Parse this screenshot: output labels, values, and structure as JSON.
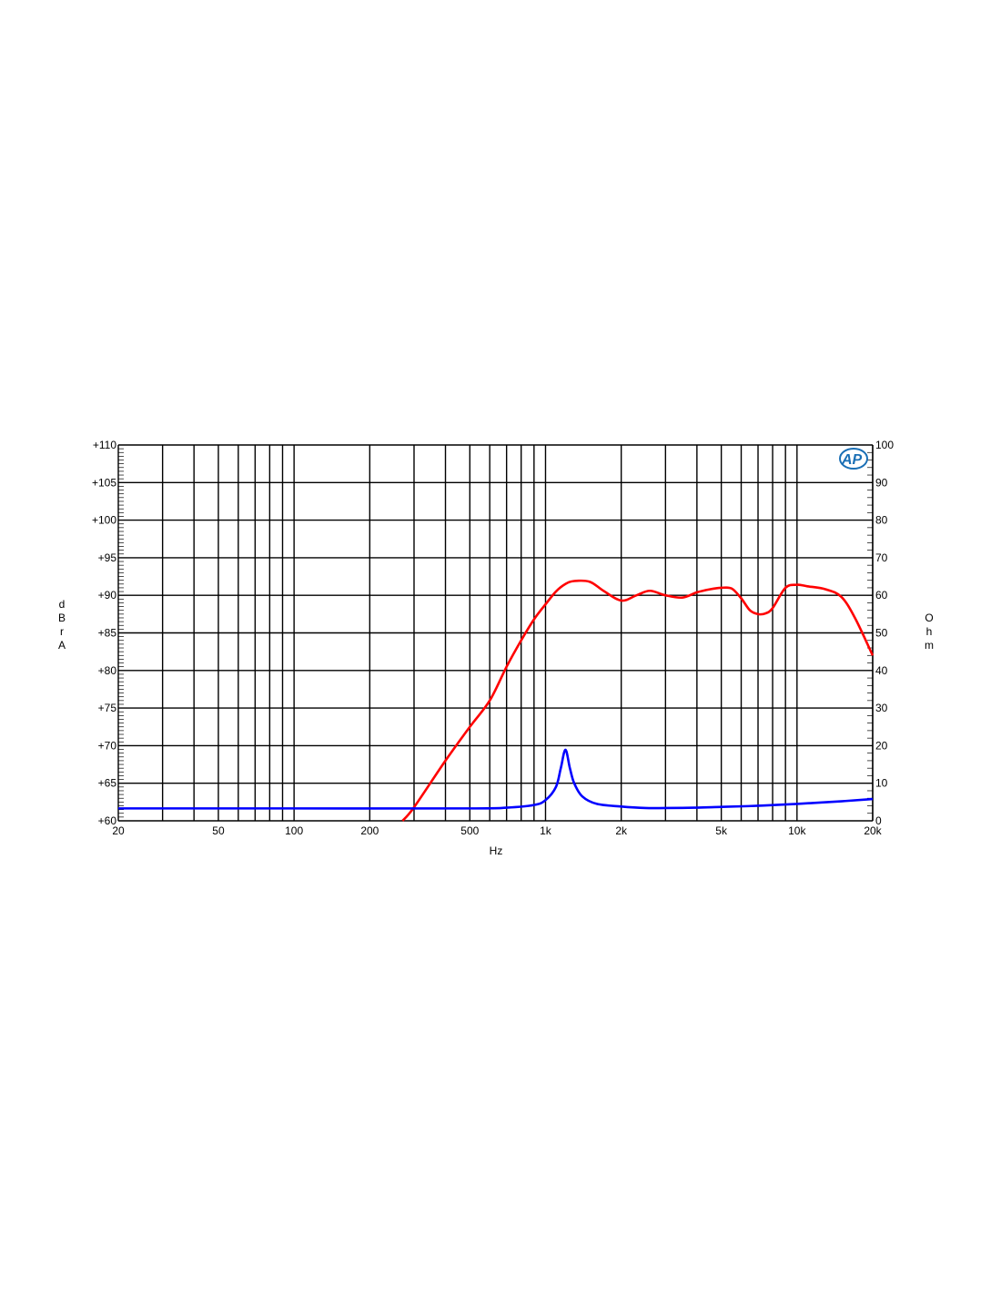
{
  "chart_data": {
    "type": "line",
    "xlabel": "Hz",
    "ylabel": "dBrA",
    "ylabel_right": "Ohm",
    "x_scale": "log",
    "xlim": [
      20,
      20000
    ],
    "ylim": [
      60,
      110
    ],
    "ylim_right": [
      0,
      100
    ],
    "grid": true,
    "x_ticks": [
      20,
      50,
      100,
      200,
      500,
      1000,
      2000,
      5000,
      10000,
      20000
    ],
    "x_tick_labels": [
      "20",
      "50",
      "100",
      "200",
      "500",
      "1k",
      "2k",
      "5k",
      "10k",
      "20k"
    ],
    "y_ticks": [
      60,
      65,
      70,
      75,
      80,
      85,
      90,
      95,
      100,
      105,
      110
    ],
    "y_tick_labels": [
      "+60",
      "+65",
      "+70",
      "+75",
      "+80",
      "+85",
      "+90",
      "+95",
      "+100",
      "+105",
      "+110"
    ],
    "y_right_ticks": [
      0,
      10,
      20,
      30,
      40,
      50,
      60,
      70,
      80,
      90,
      100
    ],
    "y_right_tick_labels": [
      "0",
      "10",
      "20",
      "30",
      "40",
      "50",
      "60",
      "70",
      "80",
      "90",
      "100"
    ],
    "logo": "AP",
    "series": [
      {
        "axis": "left",
        "color": "#ff0000",
        "x": [
          270,
          300,
          400,
          500,
          600,
          700,
          800,
          900,
          1000,
          1100,
          1200,
          1300,
          1500,
          1700,
          2000,
          2300,
          2600,
          3000,
          3500,
          4000,
          4500,
          5000,
          5500,
          6000,
          6500,
          7000,
          7500,
          8000,
          9000,
          10000,
          11000,
          13000,
          15000,
          17000,
          20000
        ],
        "values": [
          60,
          61.8,
          68,
          72.5,
          76,
          80.5,
          84,
          86.8,
          88.8,
          90.5,
          91.5,
          91.9,
          91.8,
          90.6,
          89.3,
          90,
          90.6,
          90,
          89.7,
          90.4,
          90.8,
          91,
          90.9,
          89.6,
          88,
          87.5,
          87.6,
          88.3,
          91,
          91.4,
          91.2,
          90.8,
          89.8,
          87,
          82
        ]
      },
      {
        "axis": "right",
        "color": "#0000ff",
        "x": [
          20,
          100,
          500,
          700,
          900,
          1000,
          1100,
          1150,
          1200,
          1250,
          1300,
          1400,
          1600,
          2000,
          2500,
          3000,
          4000,
          5000,
          7000,
          10000,
          15000,
          20000
        ],
        "values": [
          3.3,
          3.3,
          3.3,
          3.5,
          4.2,
          5.5,
          9,
          14,
          18.9,
          14,
          10,
          6.5,
          4.5,
          3.8,
          3.4,
          3.4,
          3.5,
          3.7,
          4,
          4.5,
          5.2,
          5.8
        ]
      }
    ]
  }
}
